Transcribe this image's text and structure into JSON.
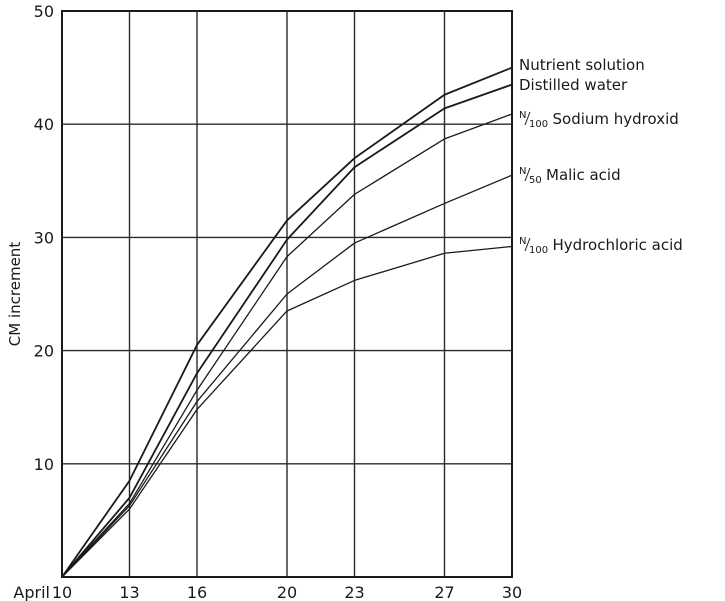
{
  "chart_data": {
    "type": "line",
    "xlabel": "",
    "ylabel": "CM increment",
    "x_prefix": "April",
    "x": [
      "10",
      "13",
      "16",
      "20",
      "23",
      "27",
      "30"
    ],
    "xlim": [
      10,
      30
    ],
    "ylim": [
      0,
      50
    ],
    "y_ticks": [
      "10",
      "20",
      "30",
      "40",
      "50"
    ],
    "grid": true,
    "legend": "right",
    "series": [
      {
        "name": "Nutrient solution",
        "values": [
          0,
          8.5,
          20.5,
          31.5,
          37.0,
          42.6,
          45.0
        ]
      },
      {
        "name": "Distilled water",
        "values": [
          0,
          7.0,
          18.0,
          29.8,
          36.2,
          41.4,
          43.5
        ]
      },
      {
        "name": "N/100 Sodium hydroxid",
        "prefix_sup": "N",
        "prefix_sub": "100",
        "label": "Sodium hydroxid",
        "values": [
          0,
          6.5,
          16.5,
          28.3,
          33.8,
          38.7,
          40.9
        ]
      },
      {
        "name": "N/50 Malic acid",
        "prefix_sup": "N",
        "prefix_sub": "50",
        "label": "Malic acid",
        "values": [
          0,
          6.3,
          15.5,
          25.0,
          29.5,
          33.0,
          35.5
        ]
      },
      {
        "name": "N/100 Hydrochloric acid",
        "prefix_sup": "N",
        "prefix_sub": "100",
        "label": "Hydrochloric acid",
        "values": [
          0,
          6.0,
          14.8,
          23.5,
          26.2,
          28.6,
          29.2
        ]
      }
    ]
  }
}
